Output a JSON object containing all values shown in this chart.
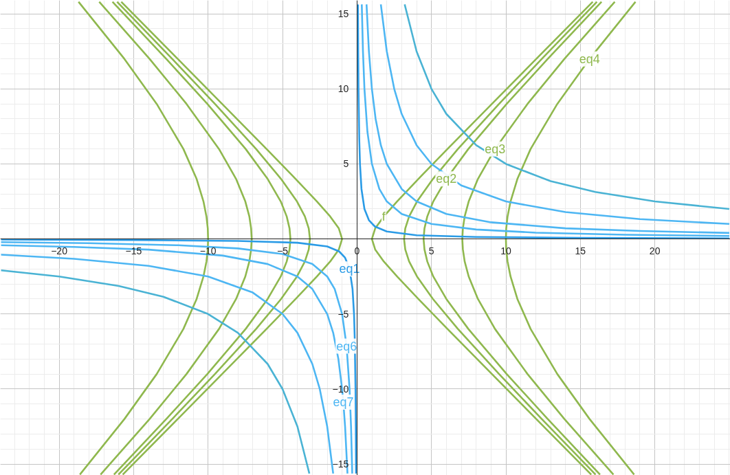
{
  "chart_data": {
    "type": "line",
    "xlim": [
      -23.95,
      25.07
    ],
    "ylim": [
      -15.75,
      15.9
    ],
    "xticks": [
      -20,
      -15,
      -10,
      -5,
      0,
      5,
      10,
      15,
      20
    ],
    "yticks": [
      -15,
      -10,
      -5,
      5,
      10,
      15
    ],
    "grid": true,
    "series": [
      {
        "color": "#8fb84e",
        "x": [
          15.73,
          12.04,
          9.06,
          6.08,
          4.12,
          2.69,
          1.8,
          1.22,
          1,
          1.22,
          1.8,
          2.69,
          4.12,
          6.08,
          9.06,
          12.04,
          15.83
        ],
        "values": [
          -15.7,
          -12,
          -9,
          -6,
          -4,
          -2.5,
          -1.5,
          -0.7,
          0,
          0.7,
          1.5,
          2.5,
          4,
          6,
          9,
          12,
          15.8
        ]
      },
      {
        "color": "#8fb84e",
        "x": [
          -15.73,
          -12.04,
          -9.06,
          -6.08,
          -4.12,
          -2.69,
          -1.8,
          -1.22,
          -1,
          -1.22,
          -1.8,
          -2.69,
          -4.12,
          -6.08,
          -9.06,
          -12.04,
          -15.83
        ],
        "values": [
          -15.7,
          -12,
          -9,
          -6,
          -4,
          -2.5,
          -1.5,
          -0.7,
          0,
          0.7,
          1.5,
          2.5,
          4,
          6,
          9,
          12,
          15.8
        ]
      },
      {
        "color": "#8fb84e",
        "x": [
          16.02,
          12.41,
          9.54,
          6.78,
          5.1,
          4.03,
          3.5,
          3.24,
          3.16,
          3.24,
          3.5,
          4.03,
          5.1,
          6.78,
          9.54,
          12.41,
          16.11
        ],
        "values": [
          -15.7,
          -12,
          -9,
          -6,
          -4,
          -2.5,
          -1.5,
          -0.7,
          0,
          0.7,
          1.5,
          2.5,
          4,
          6,
          9,
          12,
          15.8
        ]
      },
      {
        "color": "#8fb84e",
        "x": [
          -16.02,
          -12.41,
          -9.54,
          -6.78,
          -5.1,
          -4.03,
          -3.5,
          -3.24,
          -3.16,
          -3.24,
          -3.5,
          -4.03,
          -5.1,
          -6.78,
          -9.54,
          -12.41,
          -16.11
        ],
        "values": [
          -15.7,
          -12,
          -9,
          -6,
          -4,
          -2.5,
          -1.5,
          -0.7,
          0,
          0.7,
          1.5,
          2.5,
          4,
          6,
          9,
          12,
          15.8
        ]
      },
      {
        "color": "#8fb84e",
        "x": [
          16.32,
          12.81,
          10.05,
          7.48,
          6,
          5.12,
          4.72,
          4.53,
          4.47,
          4.53,
          4.72,
          5.12,
          6,
          7.48,
          10.05,
          12.81,
          16.42
        ],
        "values": [
          -15.7,
          -12,
          -9,
          -6,
          -4,
          -2.5,
          -1.5,
          -0.7,
          0,
          0.7,
          1.5,
          2.5,
          4,
          6,
          9,
          12,
          15.8
        ]
      },
      {
        "color": "#8fb84e",
        "x": [
          -16.32,
          -12.81,
          -10.05,
          -7.48,
          -6,
          -5.12,
          -4.72,
          -4.53,
          -4.47,
          -4.53,
          -4.72,
          -5.12,
          -6,
          -7.48,
          -10.05,
          -12.81,
          -16.42
        ],
        "values": [
          -15.7,
          -12,
          -9,
          -6,
          -4,
          -2.5,
          -1.5,
          -0.7,
          0,
          0.7,
          1.5,
          2.5,
          4,
          6,
          9,
          12,
          15.8
        ]
      },
      {
        "color": "#8fb84e",
        "x": [
          17.22,
          13.93,
          11.45,
          9.27,
          8.12,
          7.5,
          7.23,
          7.11,
          7.07,
          7.11,
          7.23,
          7.5,
          8.12,
          9.27,
          11.45,
          13.93,
          17.31
        ],
        "values": [
          -15.7,
          -12,
          -9,
          -6,
          -4,
          -2.5,
          -1.5,
          -0.7,
          0,
          0.7,
          1.5,
          2.5,
          4,
          6,
          9,
          12,
          15.8
        ]
      },
      {
        "color": "#8fb84e",
        "x": [
          -17.22,
          -13.93,
          -11.45,
          -9.27,
          -8.12,
          -7.5,
          -7.23,
          -7.11,
          -7.07,
          -7.11,
          -7.23,
          -7.5,
          -8.12,
          -9.27,
          -11.45,
          -13.93,
          -17.31
        ],
        "values": [
          -15.7,
          -12,
          -9,
          -6,
          -4,
          -2.5,
          -1.5,
          -0.7,
          0,
          0.7,
          1.5,
          2.5,
          4,
          6,
          9,
          12,
          15.8
        ]
      },
      {
        "color": "#8fb84e",
        "x": [
          18.61,
          15.62,
          13.45,
          11.66,
          10.77,
          10.31,
          10.11,
          10.02,
          10,
          10.02,
          10.11,
          10.31,
          10.77,
          11.66,
          13.45,
          15.62,
          18.7
        ],
        "values": [
          -15.7,
          -12,
          -9,
          -6,
          -4,
          -2.5,
          -1.5,
          -0.7,
          0,
          0.7,
          1.5,
          2.5,
          4,
          6,
          9,
          12,
          15.8
        ]
      },
      {
        "color": "#8fb84e",
        "x": [
          -18.61,
          -15.62,
          -13.45,
          -11.66,
          -10.77,
          -10.31,
          -10.11,
          -10.02,
          -10,
          -10.02,
          -10.11,
          -10.31,
          -10.77,
          -11.66,
          -13.45,
          -15.62,
          -18.7
        ],
        "values": [
          -15.7,
          -12,
          -9,
          -6,
          -4,
          -2.5,
          -1.5,
          -0.7,
          0,
          0.7,
          1.5,
          2.5,
          4,
          6,
          9,
          12,
          15.8
        ]
      },
      {
        "color": "#4ab3d4",
        "x": [
          3.2,
          4,
          5,
          6,
          8,
          10,
          13,
          16,
          20,
          25
        ],
        "values": [
          15.63,
          12.5,
          10,
          8.33,
          6.25,
          5,
          3.85,
          3.13,
          2.5,
          2
        ]
      },
      {
        "color": "#4ab3d4",
        "x": [
          -23.9,
          -20,
          -16,
          -13,
          -10,
          -8,
          -6,
          -5,
          -4,
          -3.2
        ],
        "values": [
          -2.09,
          -2.5,
          -3.13,
          -3.85,
          -5,
          -6.25,
          -8.33,
          -10,
          -12.5,
          -15.63
        ]
      },
      {
        "color": "#4db6f3",
        "x": [
          1.6,
          2,
          2.5,
          3,
          4,
          5,
          7,
          10,
          14,
          19,
          25
        ],
        "values": [
          15.63,
          12.5,
          10,
          8.33,
          6.25,
          5,
          3.57,
          2.5,
          1.79,
          1.32,
          1
        ]
      },
      {
        "color": "#4db6f3",
        "x": [
          -23.9,
          -19,
          -14,
          -10,
          -7,
          -5,
          -4,
          -3,
          -2.5,
          -2,
          -1.6
        ],
        "values": [
          -1.05,
          -1.32,
          -1.79,
          -2.5,
          -3.57,
          -5,
          -6.25,
          -8.33,
          -10,
          -12.5,
          -15.63
        ]
      },
      {
        "color": "#4db6f3",
        "x": [
          0.64,
          0.8,
          1,
          1.25,
          1.6,
          2,
          3,
          4,
          6,
          9,
          14,
          19,
          25
        ],
        "values": [
          15.63,
          12.5,
          10,
          8,
          6.25,
          5,
          3.33,
          2.5,
          1.67,
          1.11,
          0.71,
          0.53,
          0.4
        ]
      },
      {
        "color": "#4db6f3",
        "x": [
          -23.9,
          -19,
          -14,
          -9,
          -6,
          -4,
          -3,
          -2,
          -1.6,
          -1.25,
          -1,
          -0.92,
          -0.8,
          -0.64
        ],
        "values": [
          -0.42,
          -0.53,
          -0.71,
          -1.11,
          -1.67,
          -2.5,
          -3.33,
          -5,
          -6.25,
          -8,
          -10,
          -10.87,
          -12.5,
          -15.63
        ]
      },
      {
        "color": "#4db6f3",
        "x": [
          0.32,
          0.4,
          0.5,
          0.7,
          1,
          1.5,
          2,
          3,
          5,
          8,
          12,
          18,
          25
        ],
        "values": [
          15.63,
          12.5,
          10,
          7.14,
          5,
          3.33,
          2.5,
          1.67,
          1,
          0.63,
          0.42,
          0.28,
          0.2
        ]
      },
      {
        "color": "#4db6f3",
        "x": [
          -23.9,
          -18,
          -12,
          -8,
          -5,
          -3,
          -2,
          -1.5,
          -1,
          -0.7,
          -0.5,
          -0.4,
          -0.32
        ],
        "values": [
          -0.21,
          -0.28,
          -0.42,
          -0.63,
          -1,
          -1.67,
          -2.5,
          -3.33,
          -5,
          -7.14,
          -10,
          -12.5,
          -15.63
        ]
      },
      {
        "color": "#2a9be6",
        "x": [
          0.064,
          0.08,
          0.1,
          0.15,
          0.2,
          0.3,
          0.5,
          0.8,
          1.2,
          2,
          4,
          8,
          15,
          25
        ],
        "values": [
          15.63,
          12.5,
          10,
          6.67,
          5,
          3.33,
          2,
          1.25,
          0.83,
          0.5,
          0.25,
          0.13,
          0.07,
          0.04
        ]
      },
      {
        "color": "#2a9be6",
        "x": [
          -23.9,
          -15,
          -8,
          -4,
          -2,
          -1.2,
          -0.8,
          -0.5,
          -0.3,
          -0.2,
          -0.15,
          -0.1,
          -0.08,
          -0.064
        ],
        "values": [
          -0.04,
          -0.07,
          -0.13,
          -0.25,
          -0.5,
          -0.83,
          -1.25,
          -2,
          -3.33,
          -5,
          -6.67,
          -10,
          -12.5,
          -15.63
        ]
      }
    ],
    "annotations": [
      {
        "text": "f",
        "x": 1.8,
        "y": 1.5
      },
      {
        "text": "eq2",
        "x": 6,
        "y": 4
      },
      {
        "text": "eq3",
        "x": 9.27,
        "y": 6
      },
      {
        "text": "eq4",
        "x": 15.62,
        "y": 12
      },
      {
        "text": "eq1",
        "x": -0.5,
        "y": -2
      },
      {
        "text": "eq6",
        "x": -0.7,
        "y": -7.14
      },
      {
        "text": "eq7",
        "x": -0.92,
        "y": -10.87
      }
    ]
  }
}
